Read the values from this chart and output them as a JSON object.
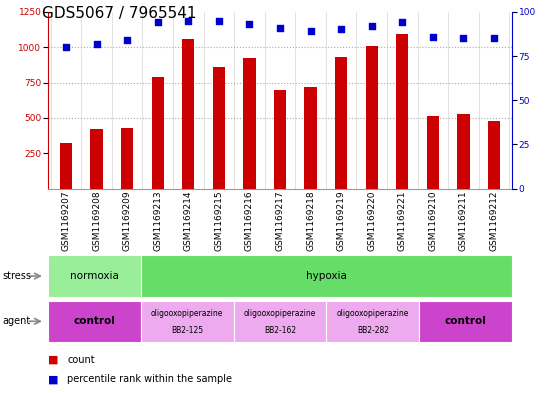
{
  "title": "GDS5067 / 7965541",
  "samples": [
    "GSM1169207",
    "GSM1169208",
    "GSM1169209",
    "GSM1169213",
    "GSM1169214",
    "GSM1169215",
    "GSM1169216",
    "GSM1169217",
    "GSM1169218",
    "GSM1169219",
    "GSM1169220",
    "GSM1169221",
    "GSM1169210",
    "GSM1169211",
    "GSM1169212"
  ],
  "counts": [
    320,
    420,
    430,
    790,
    1060,
    860,
    920,
    700,
    720,
    930,
    1010,
    1090,
    510,
    530,
    480
  ],
  "percentile_ranks": [
    80,
    82,
    84,
    94,
    95,
    95,
    93,
    91,
    89,
    90,
    92,
    94,
    86,
    85,
    85
  ],
  "bar_color": "#cc0000",
  "dot_color": "#0000cc",
  "ylim_left": [
    0,
    1250
  ],
  "ylim_right": [
    0,
    100
  ],
  "yticks_left": [
    250,
    500,
    750,
    1000,
    1250
  ],
  "yticks_right": [
    0,
    25,
    50,
    75,
    100
  ],
  "stress_row": [
    {
      "label": "normoxia",
      "start": 0,
      "end": 3,
      "color": "#99ee99"
    },
    {
      "label": "hypoxia",
      "start": 3,
      "end": 15,
      "color": "#66dd66"
    }
  ],
  "agent_row": [
    {
      "label": "control",
      "start": 0,
      "end": 3,
      "color": "#cc44cc",
      "text_lines": [
        "control"
      ],
      "bold": true
    },
    {
      "label": "oligooxopiperazine\nBB2-125",
      "start": 3,
      "end": 6,
      "color": "#eeaaee",
      "text_lines": [
        "oligooxopiperazine",
        "BB2-125"
      ],
      "bold": false
    },
    {
      "label": "oligooxopiperazine\nBB2-162",
      "start": 6,
      "end": 9,
      "color": "#eeaaee",
      "text_lines": [
        "oligooxopiperazine",
        "BB2-162"
      ],
      "bold": false
    },
    {
      "label": "oligooxopiperazine\nBB2-282",
      "start": 9,
      "end": 12,
      "color": "#eeaaee",
      "text_lines": [
        "oligooxopiperazine",
        "BB2-282"
      ],
      "bold": false
    },
    {
      "label": "control",
      "start": 12,
      "end": 15,
      "color": "#cc44cc",
      "text_lines": [
        "control"
      ],
      "bold": true
    }
  ],
  "bg_color": "#ffffff",
  "grid_color": "#888888",
  "title_fontsize": 11,
  "tick_fontsize": 6.5,
  "label_fontsize": 7.5
}
